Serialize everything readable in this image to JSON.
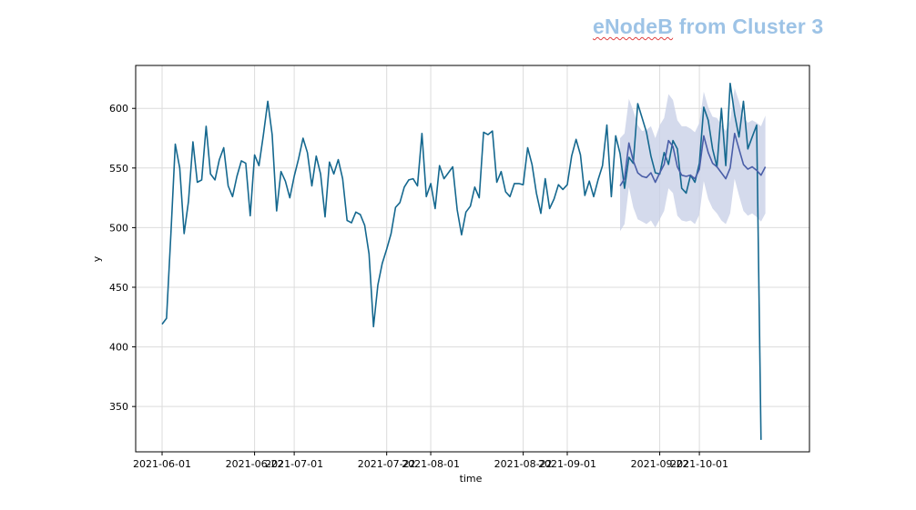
{
  "heading": {
    "prefix": "eNodeB",
    "rest": " from Cluster 3"
  },
  "chart_data": {
    "type": "line",
    "xlabel": "time",
    "ylabel": "y",
    "x_range": [
      "2021-05-26",
      "2021-10-26"
    ],
    "ylim": [
      312,
      636
    ],
    "grid": true,
    "x_ticks": [
      "2021-06-01",
      "2021-06-22",
      "2021-07-01",
      "2021-07-22",
      "2021-08-01",
      "2021-08-22",
      "2021-09-01",
      "2021-09-22",
      "2021-10-01"
    ],
    "y_ticks": [
      350,
      400,
      450,
      500,
      550,
      600
    ],
    "colors": {
      "actual": "#15688f",
      "forecast": "#4a5ea8",
      "band": "#c5cde6"
    },
    "series": [
      {
        "role": "actual",
        "start": "2021-06-01",
        "step_days": 1,
        "values": [
          419,
          424,
          495,
          570,
          550,
          495,
          522,
          572,
          538,
          540,
          585,
          545,
          540,
          557,
          567,
          535,
          526,
          543,
          556,
          554,
          510,
          561,
          552,
          578,
          606,
          578,
          514,
          547,
          539,
          525,
          543,
          558,
          575,
          563,
          535,
          560,
          545,
          509,
          555,
          545,
          557,
          541,
          506,
          504,
          513,
          511,
          502,
          478,
          417,
          452,
          470,
          482,
          495,
          517,
          521,
          534,
          540,
          541,
          535,
          579,
          526,
          537,
          516,
          552,
          541,
          546,
          551,
          515,
          494,
          513,
          518,
          534,
          525,
          580,
          578,
          581,
          538,
          547,
          530,
          526,
          537,
          537,
          536,
          567,
          553,
          529,
          512,
          541,
          516,
          524,
          536,
          532,
          536,
          560,
          574,
          561,
          527,
          539,
          526,
          540,
          552,
          586,
          526,
          577,
          562,
          533,
          559,
          554,
          604,
          592,
          580,
          560,
          546,
          545,
          563,
          553,
          573,
          566,
          533,
          529,
          544,
          538,
          554,
          601,
          590,
          566,
          551,
          600,
          552,
          621,
          595,
          576,
          606,
          566,
          576,
          586,
          322
        ]
      },
      {
        "role": "forecast",
        "start": "2021-09-13",
        "step_days": 1,
        "values": [
          535,
          541,
          571,
          556,
          546,
          543,
          542,
          546,
          538,
          546,
          553,
          573,
          568,
          551,
          544,
          543,
          544,
          541,
          549,
          577,
          563,
          554,
          551,
          546,
          541,
          550,
          579,
          566,
          553,
          549,
          551,
          548,
          544,
          551
        ]
      },
      {
        "role": "forecast_upper",
        "start": "2021-09-13",
        "step_days": 1,
        "values": [
          575,
          579,
          608,
          598,
          586,
          581,
          582,
          585,
          575,
          586,
          592,
          612,
          607,
          590,
          585,
          585,
          583,
          580,
          588,
          614,
          601,
          593,
          592,
          586,
          581,
          590,
          617,
          606,
          593,
          588,
          590,
          588,
          585,
          594
        ]
      },
      {
        "role": "forecast_lower",
        "start": "2021-09-13",
        "step_days": 1,
        "values": [
          497,
          503,
          534,
          517,
          507,
          505,
          503,
          506,
          500,
          507,
          514,
          533,
          529,
          510,
          506,
          505,
          506,
          503,
          511,
          539,
          524,
          516,
          512,
          506,
          503,
          512,
          541,
          527,
          514,
          510,
          512,
          509,
          505,
          512
        ]
      }
    ]
  }
}
